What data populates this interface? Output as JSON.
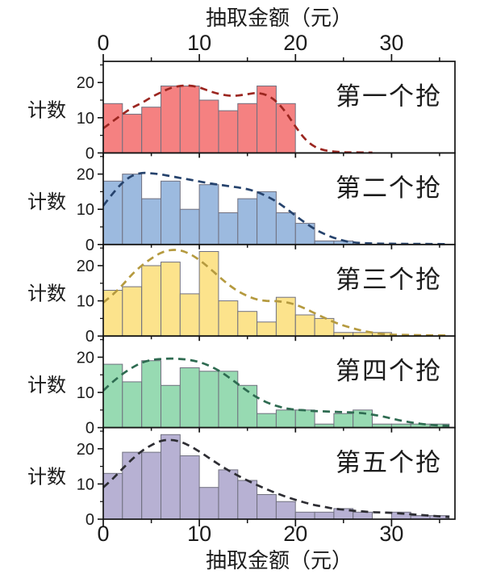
{
  "figure": {
    "top_axis_title": "抽取金额（元）",
    "bottom_axis_title": "抽取金额（元）",
    "y_axis_label": "计数"
  },
  "chart_data": {
    "type": "bar",
    "subtype": "histogram-small-multiples",
    "title": "",
    "xlabel": "抽取金额（元）",
    "ylabel": "计数",
    "xlim": [
      0,
      36.6
    ],
    "ylim": [
      0,
      26
    ],
    "grid": false,
    "legend": "none",
    "bin_width": 2,
    "bin_start": 0,
    "x_ticks_major": [
      0,
      10,
      20,
      30
    ],
    "x_ticks_minor": [
      5,
      15,
      25,
      35
    ],
    "y_ticks_major": [
      0,
      10,
      20
    ],
    "y_ticks_minor": [
      5,
      15,
      25
    ],
    "panels": [
      {
        "label": "第一个抢",
        "bar_color": "#F58181",
        "curve_color": "#9B2620",
        "counts": [
          14,
          11,
          13,
          19,
          19,
          15,
          12,
          14,
          19,
          14
        ],
        "kde": [
          [
            0,
            7
          ],
          [
            1,
            9
          ],
          [
            2,
            11
          ],
          [
            3,
            12.8
          ],
          [
            4,
            14.2
          ],
          [
            5,
            15.8
          ],
          [
            6,
            17.2
          ],
          [
            7,
            18.4
          ],
          [
            8,
            19
          ],
          [
            9,
            19.1
          ],
          [
            10,
            18.6
          ],
          [
            11,
            17.6
          ],
          [
            12,
            16.8
          ],
          [
            13,
            16.3
          ],
          [
            14,
            16.3
          ],
          [
            15,
            16.7
          ],
          [
            16,
            17
          ],
          [
            17,
            16.4
          ],
          [
            18,
            14.6
          ],
          [
            19,
            11.5
          ],
          [
            20,
            7.5
          ],
          [
            21,
            4
          ],
          [
            22,
            1.8
          ],
          [
            23,
            0.8
          ],
          [
            24,
            0.4
          ],
          [
            25,
            0.2
          ],
          [
            26,
            0.15
          ],
          [
            28,
            0.1
          ]
        ]
      },
      {
        "label": "第二个抢",
        "bar_color": "#9CBADF",
        "curve_color": "#26436D",
        "counts": [
          18,
          20,
          13,
          18,
          10,
          17,
          9,
          13,
          15,
          9,
          6,
          1,
          1
        ],
        "kde": [
          [
            0,
            11
          ],
          [
            1,
            14.5
          ],
          [
            2,
            17.5
          ],
          [
            3,
            19.5
          ],
          [
            4,
            20.3
          ],
          [
            5,
            20.2
          ],
          [
            6,
            19.9
          ],
          [
            7,
            19.4
          ],
          [
            8,
            18.9
          ],
          [
            9,
            18.4
          ],
          [
            10,
            17.9
          ],
          [
            11,
            17.4
          ],
          [
            12,
            17
          ],
          [
            13,
            16.6
          ],
          [
            14,
            16.2
          ],
          [
            15,
            15.7
          ],
          [
            16,
            14.9
          ],
          [
            17,
            13.7
          ],
          [
            18,
            12.2
          ],
          [
            19,
            10.3
          ],
          [
            20,
            8.2
          ],
          [
            21,
            6.2
          ],
          [
            22,
            4.4
          ],
          [
            23,
            3
          ],
          [
            24,
            1.9
          ],
          [
            25,
            1.1
          ],
          [
            26,
            0.6
          ],
          [
            28,
            0.3
          ],
          [
            30,
            0.2
          ],
          [
            33,
            0.15
          ],
          [
            36,
            0.1
          ]
        ]
      },
      {
        "label": "第三个抢",
        "bar_color": "#FCE38C",
        "curve_color": "#B59A3F",
        "counts": [
          13,
          14,
          20,
          21,
          12,
          24,
          10,
          7,
          4,
          11,
          6,
          5,
          1,
          1,
          1
        ],
        "kde": [
          [
            0,
            9.5
          ],
          [
            1,
            11.8
          ],
          [
            2,
            14.5
          ],
          [
            3,
            17.5
          ],
          [
            4,
            20
          ],
          [
            5,
            22
          ],
          [
            6,
            23.6
          ],
          [
            7,
            24.4
          ],
          [
            8,
            24.3
          ],
          [
            9,
            23.3
          ],
          [
            10,
            21.6
          ],
          [
            11,
            19.4
          ],
          [
            12,
            17
          ],
          [
            13,
            14.7
          ],
          [
            14,
            12.8
          ],
          [
            15,
            11.4
          ],
          [
            16,
            10.4
          ],
          [
            17,
            10
          ],
          [
            18,
            9.9
          ],
          [
            19,
            9.6
          ],
          [
            20,
            8.9
          ],
          [
            21,
            7.8
          ],
          [
            22,
            6.5
          ],
          [
            23,
            5.2
          ],
          [
            24,
            4
          ],
          [
            25,
            3
          ],
          [
            26,
            2.2
          ],
          [
            27,
            1.5
          ],
          [
            28,
            1
          ],
          [
            29,
            0.6
          ],
          [
            30,
            0.4
          ],
          [
            32,
            0.3
          ],
          [
            34,
            0.2
          ],
          [
            36,
            0.15
          ]
        ]
      },
      {
        "label": "第四个抢",
        "bar_color": "#97DAB2",
        "curve_color": "#2E6B51",
        "counts": [
          18,
          13,
          19,
          12,
          17,
          16,
          16,
          12,
          4,
          5,
          5,
          1,
          4,
          5,
          1,
          1,
          1,
          1
        ],
        "kde": [
          [
            0,
            10.5
          ],
          [
            1,
            13
          ],
          [
            2,
            15.2
          ],
          [
            3,
            17
          ],
          [
            4,
            18.4
          ],
          [
            5,
            19.2
          ],
          [
            6,
            19.5
          ],
          [
            7,
            19.6
          ],
          [
            8,
            19.5
          ],
          [
            9,
            19.2
          ],
          [
            10,
            18.6
          ],
          [
            11,
            17.6
          ],
          [
            12,
            16.2
          ],
          [
            13,
            14.4
          ],
          [
            14,
            12.4
          ],
          [
            15,
            10.4
          ],
          [
            16,
            8.6
          ],
          [
            17,
            7.2
          ],
          [
            18,
            6.2
          ],
          [
            19,
            5.5
          ],
          [
            20,
            5.1
          ],
          [
            21,
            4.9
          ],
          [
            22,
            4.7
          ],
          [
            23,
            4.6
          ],
          [
            24,
            4.5
          ],
          [
            25,
            4.4
          ],
          [
            26,
            4.3
          ],
          [
            27,
            4.1
          ],
          [
            28,
            3.7
          ],
          [
            29,
            3.2
          ],
          [
            30,
            2.6
          ],
          [
            31,
            2
          ],
          [
            32,
            1.5
          ],
          [
            33,
            1.1
          ],
          [
            34,
            0.8
          ],
          [
            35,
            0.6
          ],
          [
            36,
            0.5
          ]
        ]
      },
      {
        "label": "第五个抢",
        "bar_color": "#B7B1D3",
        "curve_color": "#2D2D33",
        "counts": [
          13,
          19,
          19,
          24,
          18,
          9,
          14,
          11,
          7,
          5,
          2,
          2,
          3,
          2,
          0,
          2,
          1,
          1
        ],
        "kde": [
          [
            0,
            9
          ],
          [
            1,
            11.5
          ],
          [
            2,
            14.3
          ],
          [
            3,
            17
          ],
          [
            4,
            19.3
          ],
          [
            5,
            21
          ],
          [
            6,
            22.2
          ],
          [
            7,
            22.5
          ],
          [
            8,
            22
          ],
          [
            9,
            20.8
          ],
          [
            10,
            19.2
          ],
          [
            11,
            17.4
          ],
          [
            12,
            15.6
          ],
          [
            13,
            13.9
          ],
          [
            14,
            12.4
          ],
          [
            15,
            11
          ],
          [
            16,
            9.7
          ],
          [
            17,
            8.5
          ],
          [
            18,
            7.4
          ],
          [
            19,
            6.4
          ],
          [
            20,
            5.5
          ],
          [
            21,
            4.7
          ],
          [
            22,
            4
          ],
          [
            23,
            3.5
          ],
          [
            24,
            3
          ],
          [
            25,
            2.7
          ],
          [
            26,
            2.4
          ],
          [
            27,
            2.2
          ],
          [
            28,
            2
          ],
          [
            29,
            1.9
          ],
          [
            30,
            1.8
          ],
          [
            31,
            1.6
          ],
          [
            32,
            1.4
          ],
          [
            33,
            1.2
          ],
          [
            34,
            1
          ],
          [
            35,
            0.8
          ],
          [
            36,
            0.6
          ]
        ]
      }
    ]
  }
}
